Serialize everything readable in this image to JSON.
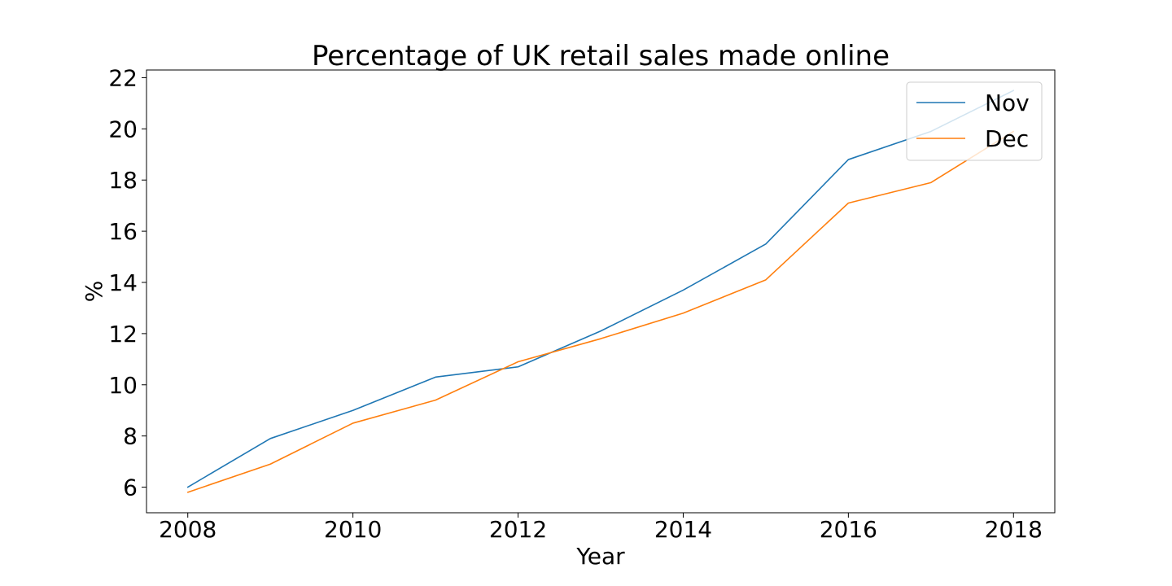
{
  "chart_data": {
    "type": "line",
    "title": "Percentage of UK retail sales made online",
    "xlabel": "Year",
    "ylabel": "%",
    "x": [
      2008,
      2009,
      2010,
      2011,
      2012,
      2013,
      2014,
      2015,
      2016,
      2017,
      2018
    ],
    "xlim": [
      2007.5,
      2018.5
    ],
    "ylim": [
      5.0,
      22.3
    ],
    "x_ticks": [
      2008,
      2010,
      2012,
      2014,
      2016,
      2018
    ],
    "y_ticks": [
      6,
      8,
      10,
      12,
      14,
      16,
      18,
      20,
      22
    ],
    "grid": false,
    "legend_position": "top-right",
    "series": [
      {
        "name": "Nov",
        "color": "#1f77b4",
        "values": [
          6.0,
          7.9,
          9.0,
          10.3,
          10.7,
          12.1,
          13.7,
          15.5,
          18.8,
          19.9,
          21.5
        ]
      },
      {
        "name": "Dec",
        "color": "#ff7f0e",
        "values": [
          5.8,
          6.9,
          8.5,
          9.4,
          10.9,
          11.8,
          12.8,
          14.1,
          17.1,
          17.9,
          19.9
        ]
      }
    ]
  }
}
